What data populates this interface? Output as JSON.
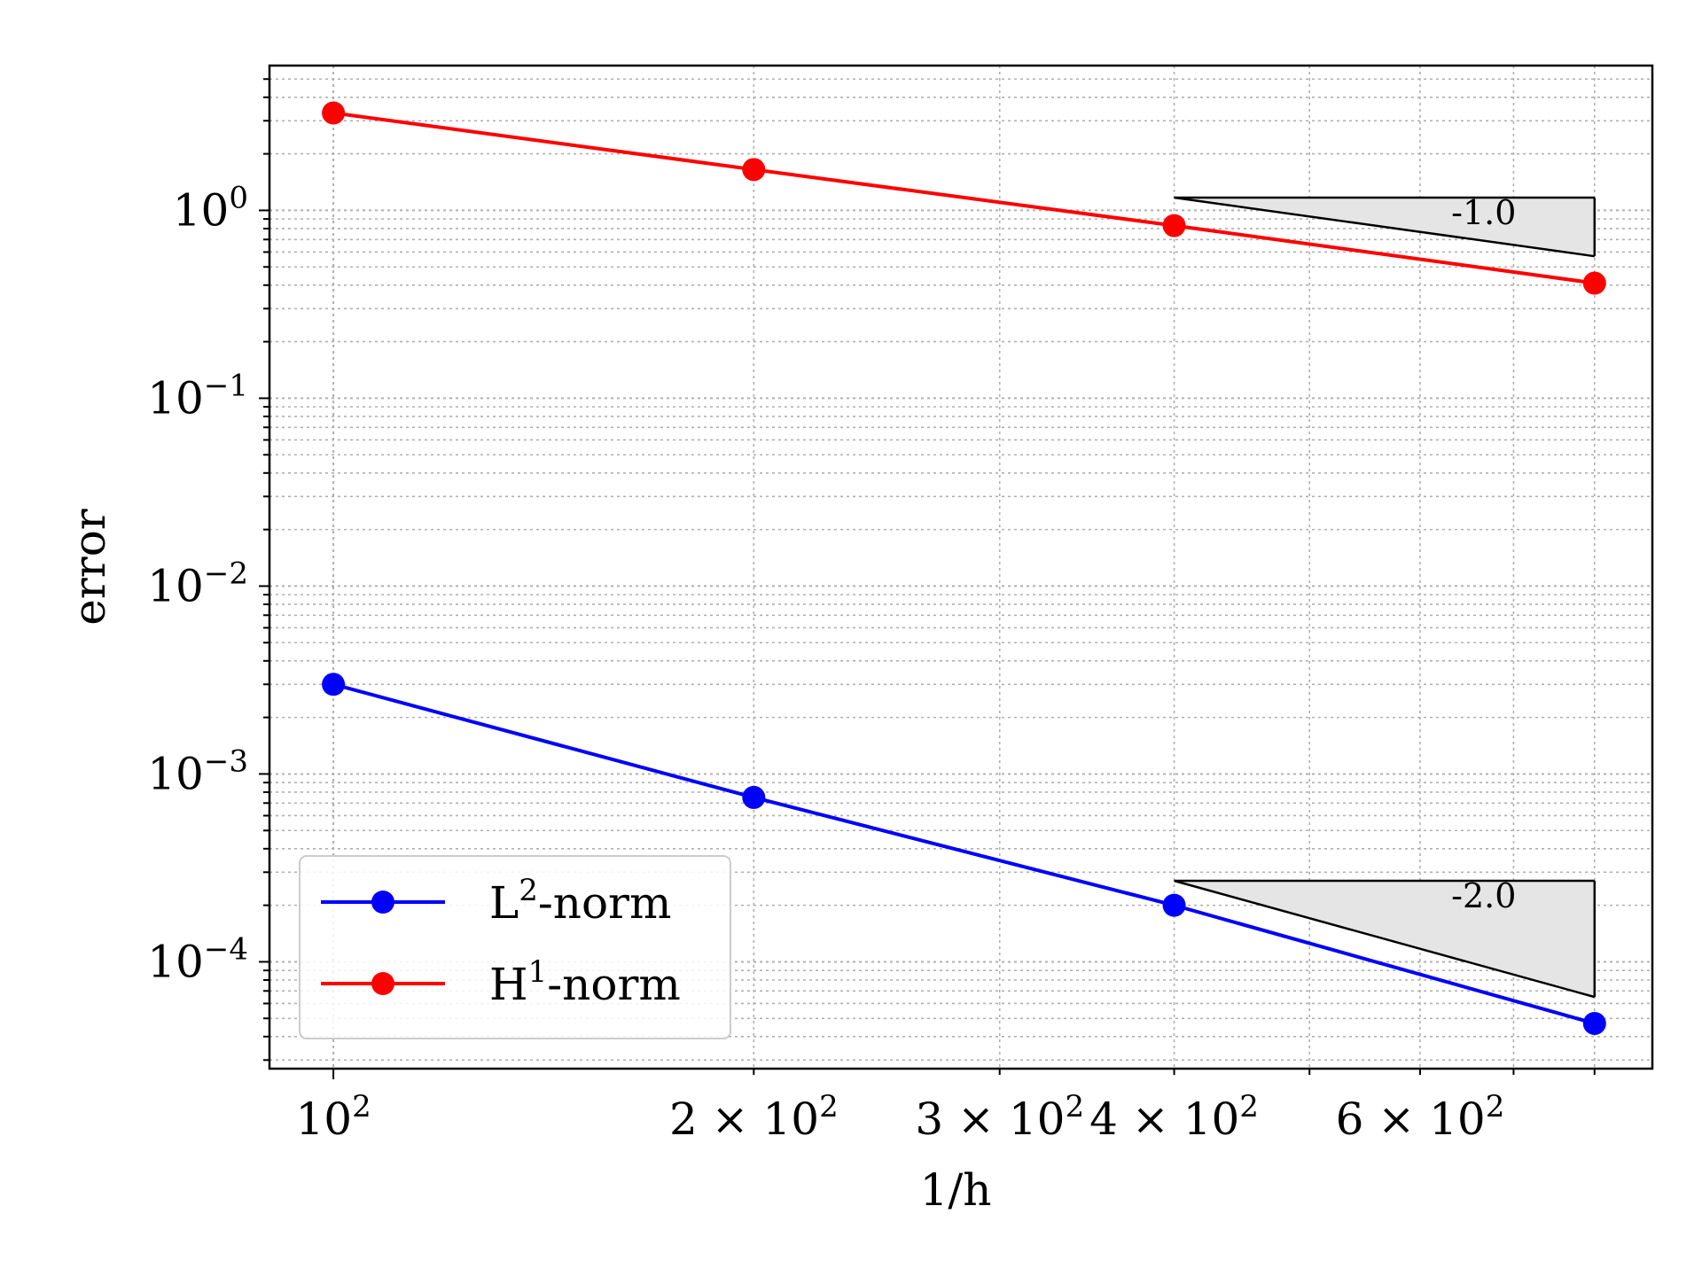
{
  "chart_data": {
    "type": "line",
    "title": "",
    "xlabel": "1/h",
    "ylabel": "error",
    "xscale": "log",
    "yscale": "log",
    "xlim": [
      90,
      880
    ],
    "ylim": [
      2.7e-05,
      5.9
    ],
    "grid": "both major and minor, dotted",
    "legend_position": "lower-left",
    "x_tick_labels": [
      {
        "value": 100,
        "mantissa": "",
        "exponent": "2"
      },
      {
        "value": 200,
        "mantissa": "2",
        "exponent": "2"
      },
      {
        "value": 300,
        "mantissa": "3",
        "exponent": "2"
      },
      {
        "value": 400,
        "mantissa": "4",
        "exponent": "2"
      },
      {
        "value": 600,
        "mantissa": "6",
        "exponent": "2"
      }
    ],
    "y_tick_labels": [
      {
        "value": 1,
        "exponent": "0"
      },
      {
        "value": 0.1,
        "exponent": "−1"
      },
      {
        "value": 0.01,
        "exponent": "−2"
      },
      {
        "value": 0.001,
        "exponent": "−3"
      },
      {
        "value": 0.0001,
        "exponent": "−4"
      }
    ],
    "x": [
      100,
      200,
      400,
      800
    ],
    "series": [
      {
        "name": "L2-norm",
        "label_base": "L",
        "label_sup": "2",
        "label_rest": "-norm",
        "color": "#0000ff",
        "values": [
          0.003,
          0.00075,
          0.0002,
          4.7e-05
        ]
      },
      {
        "name": "H1-norm",
        "label_base": "H",
        "label_sup": "1",
        "label_rest": "-norm",
        "color": "#ff0000",
        "values": [
          3.3,
          1.65,
          0.83,
          0.41
        ]
      }
    ],
    "slope_triangles": [
      {
        "label": "-1.0",
        "x0": 400,
        "x1": 800,
        "y_top": 1.17,
        "y_bottom": 0.57
      },
      {
        "label": "-2.0",
        "x0": 400,
        "x1": 800,
        "y_top": 0.00027,
        "y_bottom": 6.5e-05
      }
    ],
    "colors": {
      "triangle_fill": "#e5e5e5",
      "axis": "#000000",
      "grid": "#b0b0b0"
    }
  }
}
